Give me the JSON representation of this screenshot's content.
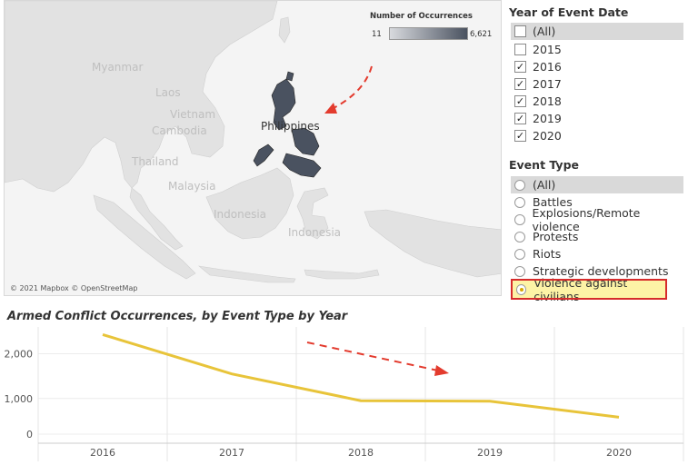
{
  "map": {
    "attribution": "© 2021 Mapbox © OpenStreetMap",
    "labels": [
      "Myanmar",
      "Laos",
      "Vietnam",
      "Cambodia",
      "Thailand",
      "Malaysia",
      "Indonesia",
      "Indonesia"
    ],
    "highlight_label": "Philippines",
    "legend": {
      "title": "Number of Occurrences",
      "min": "11",
      "max": "6,621"
    },
    "colors": {
      "land": "#e2e2e2",
      "water": "#f4f4f4",
      "highlight": "#4a5260",
      "arrow": "#e33b2e"
    }
  },
  "year_filter": {
    "title": "Year of Event Date",
    "items": [
      {
        "label": "(All)",
        "checked": false
      },
      {
        "label": "2015",
        "checked": false
      },
      {
        "label": "2016",
        "checked": true
      },
      {
        "label": "2017",
        "checked": true
      },
      {
        "label": "2018",
        "checked": true
      },
      {
        "label": "2019",
        "checked": true
      },
      {
        "label": "2020",
        "checked": true
      }
    ]
  },
  "event_filter": {
    "title": "Event Type",
    "items": [
      {
        "label": "(All)",
        "selected": false
      },
      {
        "label": "Battles",
        "selected": false
      },
      {
        "label": "Explosions/Remote violence",
        "selected": false
      },
      {
        "label": "Protests",
        "selected": false
      },
      {
        "label": "Riots",
        "selected": false
      },
      {
        "label": "Strategic developments",
        "selected": false
      },
      {
        "label": "Violence against civilians",
        "selected": true
      }
    ]
  },
  "chart_data": {
    "type": "line",
    "title": "Armed Conflict Occurrences, by Event Type by Year",
    "x": [
      "2016",
      "2017",
      "2018",
      "2019",
      "2020"
    ],
    "series": [
      {
        "values": [
          2430,
          1550,
          950,
          940,
          580
        ],
        "color": "#e8c43a"
      }
    ],
    "yticks": [
      "0",
      "1,000",
      "2,000"
    ],
    "ylim": [
      0,
      2600
    ],
    "grid": true
  }
}
